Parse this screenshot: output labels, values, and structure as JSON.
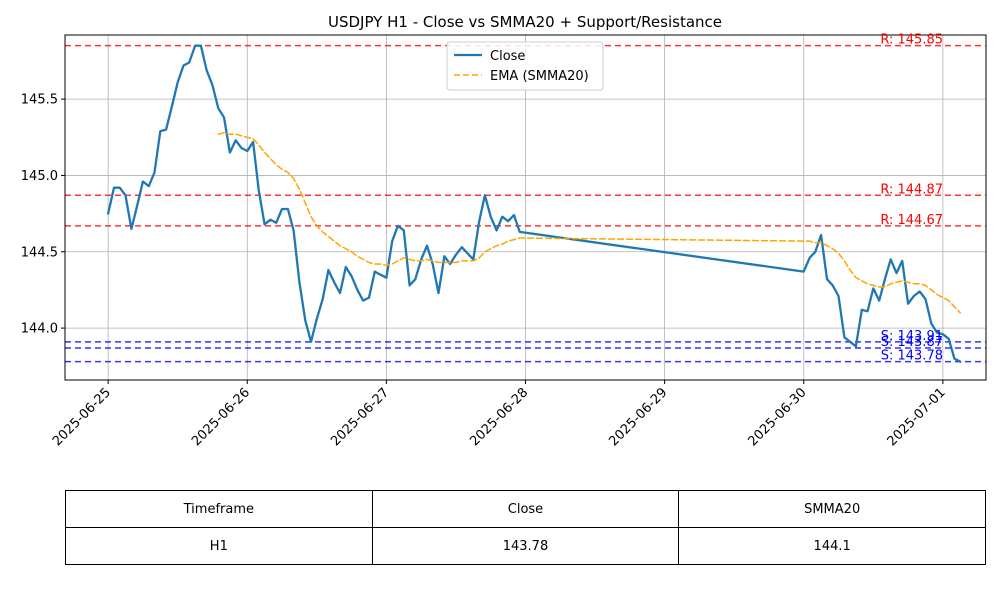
{
  "chart_data": {
    "type": "line",
    "title": "USDJPY H1 - Close vs SMMA20 + Support/Resistance",
    "xlabel": "",
    "ylabel": "",
    "x_ticks": [
      "2025-06-25",
      "2025-06-26",
      "2025-06-27",
      "2025-06-28",
      "2025-06-29",
      "2025-06-30",
      "2025-07-01"
    ],
    "y_ticks": [
      "144.0",
      "144.5",
      "145.0",
      "145.5"
    ],
    "y_tick_values": [
      144.0,
      144.5,
      145.0,
      145.5
    ],
    "xlim_days": [
      -0.31,
      6.31
    ],
    "ylim": [
      143.66,
      145.92
    ],
    "grid": true,
    "legend_position": "top-center",
    "series": [
      {
        "name": "Close",
        "color": "#1f77b4",
        "style": "solid",
        "points": [
          [
            0.0,
            144.75
          ],
          [
            0.042,
            144.92
          ],
          [
            0.083,
            144.92
          ],
          [
            0.125,
            144.87
          ],
          [
            0.167,
            144.65
          ],
          [
            0.208,
            144.8
          ],
          [
            0.25,
            144.96
          ],
          [
            0.292,
            144.93
          ],
          [
            0.333,
            145.02
          ],
          [
            0.375,
            145.29
          ],
          [
            0.417,
            145.3
          ],
          [
            0.458,
            145.45
          ],
          [
            0.5,
            145.61
          ],
          [
            0.542,
            145.72
          ],
          [
            0.583,
            145.74
          ],
          [
            0.625,
            145.85
          ],
          [
            0.667,
            145.85
          ],
          [
            0.708,
            145.69
          ],
          [
            0.75,
            145.59
          ],
          [
            0.792,
            145.44
          ],
          [
            0.833,
            145.38
          ],
          [
            0.875,
            145.15
          ],
          [
            0.917,
            145.23
          ],
          [
            0.958,
            145.18
          ],
          [
            1.0,
            145.16
          ],
          [
            1.042,
            145.22
          ],
          [
            1.083,
            144.9
          ],
          [
            1.125,
            144.68
          ],
          [
            1.167,
            144.71
          ],
          [
            1.208,
            144.69
          ],
          [
            1.25,
            144.78
          ],
          [
            1.292,
            144.78
          ],
          [
            1.333,
            144.64
          ],
          [
            1.375,
            144.3
          ],
          [
            1.417,
            144.05
          ],
          [
            1.458,
            143.91
          ],
          [
            1.5,
            144.06
          ],
          [
            1.542,
            144.19
          ],
          [
            1.583,
            144.38
          ],
          [
            1.625,
            144.3
          ],
          [
            1.667,
            144.23
          ],
          [
            1.708,
            144.4
          ],
          [
            1.75,
            144.34
          ],
          [
            1.792,
            144.25
          ],
          [
            1.833,
            144.18
          ],
          [
            1.875,
            144.2
          ],
          [
            1.917,
            144.37
          ],
          [
            1.958,
            144.35
          ],
          [
            2.0,
            144.33
          ],
          [
            2.042,
            144.57
          ],
          [
            2.083,
            144.67
          ],
          [
            2.125,
            144.64
          ],
          [
            2.167,
            144.28
          ],
          [
            2.208,
            144.32
          ],
          [
            2.25,
            144.45
          ],
          [
            2.292,
            144.54
          ],
          [
            2.333,
            144.42
          ],
          [
            2.375,
            144.23
          ],
          [
            2.417,
            144.47
          ],
          [
            2.458,
            144.42
          ],
          [
            2.5,
            144.48
          ],
          [
            2.542,
            144.53
          ],
          [
            2.583,
            144.49
          ],
          [
            2.625,
            144.45
          ],
          [
            2.667,
            144.7
          ],
          [
            2.708,
            144.87
          ],
          [
            2.75,
            144.73
          ],
          [
            2.792,
            144.64
          ],
          [
            2.833,
            144.73
          ],
          [
            2.875,
            144.7
          ],
          [
            2.917,
            144.74
          ],
          [
            2.958,
            144.63
          ],
          [
            5.0,
            144.37
          ],
          [
            5.042,
            144.46
          ],
          [
            5.083,
            144.5
          ],
          [
            5.125,
            144.61
          ],
          [
            5.167,
            144.32
          ],
          [
            5.208,
            144.28
          ],
          [
            5.25,
            144.21
          ],
          [
            5.292,
            143.94
          ],
          [
            5.333,
            143.91
          ],
          [
            5.375,
            143.88
          ],
          [
            5.417,
            144.12
          ],
          [
            5.458,
            144.11
          ],
          [
            5.5,
            144.26
          ],
          [
            5.542,
            144.18
          ],
          [
            5.583,
            144.32
          ],
          [
            5.625,
            144.45
          ],
          [
            5.667,
            144.36
          ],
          [
            5.708,
            144.44
          ],
          [
            5.75,
            144.16
          ],
          [
            5.792,
            144.21
          ],
          [
            5.833,
            144.24
          ],
          [
            5.875,
            144.19
          ],
          [
            5.917,
            144.03
          ],
          [
            5.958,
            143.97
          ],
          [
            6.0,
            143.96
          ],
          [
            6.042,
            143.93
          ],
          [
            6.083,
            143.8
          ],
          [
            6.125,
            143.78
          ]
        ]
      },
      {
        "name": "EMA (SMMA20)",
        "color": "#ffa500",
        "style": "dashed",
        "points": [
          [
            0.792,
            145.27
          ],
          [
            0.833,
            145.28
          ],
          [
            0.875,
            145.27
          ],
          [
            0.917,
            145.27
          ],
          [
            0.958,
            145.26
          ],
          [
            1.0,
            145.25
          ],
          [
            1.042,
            145.24
          ],
          [
            1.083,
            145.2
          ],
          [
            1.125,
            145.15
          ],
          [
            1.167,
            145.11
          ],
          [
            1.208,
            145.07
          ],
          [
            1.25,
            145.04
          ],
          [
            1.292,
            145.02
          ],
          [
            1.333,
            144.98
          ],
          [
            1.375,
            144.91
          ],
          [
            1.417,
            144.82
          ],
          [
            1.458,
            144.73
          ],
          [
            1.5,
            144.67
          ],
          [
            1.542,
            144.63
          ],
          [
            1.583,
            144.6
          ],
          [
            1.625,
            144.57
          ],
          [
            1.667,
            144.54
          ],
          [
            1.708,
            144.52
          ],
          [
            1.75,
            144.5
          ],
          [
            1.792,
            144.47
          ],
          [
            1.833,
            144.45
          ],
          [
            1.875,
            144.43
          ],
          [
            1.917,
            144.42
          ],
          [
            1.958,
            144.42
          ],
          [
            2.0,
            144.41
          ],
          [
            2.042,
            144.42
          ],
          [
            2.083,
            144.44
          ],
          [
            2.125,
            144.46
          ],
          [
            2.167,
            144.45
          ],
          [
            2.208,
            144.44
          ],
          [
            2.25,
            144.44
          ],
          [
            2.292,
            144.45
          ],
          [
            2.333,
            144.44
          ],
          [
            2.375,
            144.43
          ],
          [
            2.417,
            144.43
          ],
          [
            2.458,
            144.43
          ],
          [
            2.5,
            144.43
          ],
          [
            2.542,
            144.44
          ],
          [
            2.583,
            144.44
          ],
          [
            2.625,
            144.44
          ],
          [
            2.667,
            144.46
          ],
          [
            2.708,
            144.5
          ],
          [
            2.75,
            144.52
          ],
          [
            2.792,
            144.54
          ],
          [
            2.833,
            144.55
          ],
          [
            2.875,
            144.57
          ],
          [
            2.917,
            144.58
          ],
          [
            2.958,
            144.59
          ],
          [
            5.0,
            144.57
          ],
          [
            5.042,
            144.57
          ],
          [
            5.083,
            144.56
          ],
          [
            5.125,
            144.56
          ],
          [
            5.167,
            144.54
          ],
          [
            5.208,
            144.52
          ],
          [
            5.25,
            144.49
          ],
          [
            5.292,
            144.44
          ],
          [
            5.333,
            144.38
          ],
          [
            5.375,
            144.33
          ],
          [
            5.417,
            144.31
          ],
          [
            5.458,
            144.29
          ],
          [
            5.5,
            144.28
          ],
          [
            5.542,
            144.27
          ],
          [
            5.583,
            144.27
          ],
          [
            5.625,
            144.29
          ],
          [
            5.667,
            144.3
          ],
          [
            5.708,
            144.31
          ],
          [
            5.75,
            144.3
          ],
          [
            5.792,
            144.29
          ],
          [
            5.833,
            144.29
          ],
          [
            5.875,
            144.28
          ],
          [
            5.917,
            144.25
          ],
          [
            5.958,
            144.22
          ],
          [
            6.0,
            144.2
          ],
          [
            6.042,
            144.18
          ],
          [
            6.083,
            144.14
          ],
          [
            6.125,
            144.1
          ]
        ]
      }
    ],
    "levels": [
      {
        "kind": "resistance",
        "value": 145.85,
        "label": "R: 145.85",
        "color": "#ff0000"
      },
      {
        "kind": "resistance",
        "value": 144.87,
        "label": "R: 144.87",
        "color": "#ff0000"
      },
      {
        "kind": "resistance",
        "value": 144.67,
        "label": "R: 144.67",
        "color": "#ff0000"
      },
      {
        "kind": "support",
        "value": 143.91,
        "label": "S: 143.91",
        "color": "#0000ff"
      },
      {
        "kind": "support",
        "value": 143.87,
        "label": "S: 143.87",
        "color": "#0000ff"
      },
      {
        "kind": "support",
        "value": 143.78,
        "label": "S: 143.78",
        "color": "#0000ff"
      }
    ]
  },
  "table": {
    "headers": [
      "Timeframe",
      "Close",
      "SMMA20"
    ],
    "rows": [
      [
        "H1",
        "143.78",
        "144.1"
      ]
    ]
  }
}
